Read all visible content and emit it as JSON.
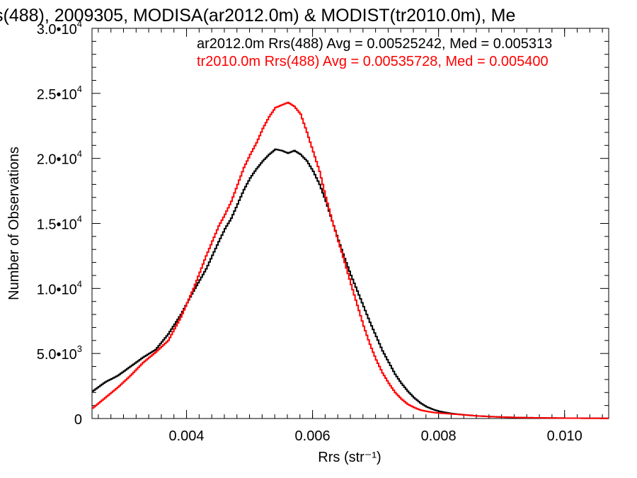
{
  "chart_data": {
    "type": "line",
    "title": "s(488), 2009305, MODISA(ar2012.0m) & MODIST(tr2010.0m), Me",
    "xlabel": "Rrs (str⁻¹)",
    "ylabel": "Number of Observations",
    "xlim": [
      0.0025,
      0.0107
    ],
    "ylim": [
      0,
      30000
    ],
    "x_ticks": [
      {
        "value": 0.004,
        "label": "0.004"
      },
      {
        "value": 0.006,
        "label": "0.006"
      },
      {
        "value": 0.008,
        "label": "0.008"
      },
      {
        "value": 0.01,
        "label": "0.010"
      }
    ],
    "y_ticks": [
      {
        "value": 0,
        "mant": "0",
        "exp": ""
      },
      {
        "value": 5000,
        "mant": "5.0•10",
        "exp": "3"
      },
      {
        "value": 10000,
        "mant": "1.0•10",
        "exp": "4"
      },
      {
        "value": 15000,
        "mant": "1.5•10",
        "exp": "4"
      },
      {
        "value": 20000,
        "mant": "2.0•10",
        "exp": "4"
      },
      {
        "value": 25000,
        "mant": "2.5•10",
        "exp": "4"
      },
      {
        "value": 30000,
        "mant": "3.0•10",
        "exp": "4"
      }
    ],
    "legend_position": "top-right",
    "series": [
      {
        "label": "ar2012.0m Rrs(488) Avg = 0.00525242, Med = 0.005313",
        "color": "#000000",
        "x": [
          0.0025,
          0.0027,
          0.0029,
          0.0031,
          0.0033,
          0.0035,
          0.0037,
          0.0039,
          0.0041,
          0.0043,
          0.0045,
          0.0046,
          0.0047,
          0.0048,
          0.0049,
          0.005,
          0.0051,
          0.0052,
          0.0053,
          0.0054,
          0.0055,
          0.0056,
          0.0057,
          0.0058,
          0.0059,
          0.006,
          0.0061,
          0.0062,
          0.0063,
          0.0064,
          0.0065,
          0.0066,
          0.0067,
          0.0068,
          0.0069,
          0.007,
          0.0071,
          0.0072,
          0.0073,
          0.0074,
          0.0075,
          0.0076,
          0.0077,
          0.0078,
          0.0079,
          0.008,
          0.0082,
          0.0084,
          0.0086,
          0.0088,
          0.009,
          0.0093,
          0.0096,
          0.01,
          0.0104,
          0.0107
        ],
        "y": [
          2100,
          2800,
          3300,
          4000,
          4700,
          5300,
          6500,
          8000,
          9800,
          11500,
          13600,
          14600,
          15400,
          16500,
          17600,
          18500,
          19200,
          19800,
          20300,
          20700,
          20600,
          20400,
          20600,
          20300,
          19800,
          19000,
          18000,
          16700,
          15200,
          13700,
          12300,
          11000,
          9800,
          8600,
          7400,
          6300,
          5200,
          4300,
          3400,
          2700,
          2100,
          1600,
          1200,
          900,
          700,
          550,
          380,
          280,
          200,
          150,
          110,
          70,
          50,
          30,
          20,
          15
        ]
      },
      {
        "label": "tr2010.0m Rrs(488) Avg = 0.00535728, Med = 0.005400",
        "color": "#ff0000",
        "x": [
          0.0025,
          0.0027,
          0.0029,
          0.0031,
          0.0033,
          0.0035,
          0.0037,
          0.0039,
          0.0041,
          0.0043,
          0.0045,
          0.0046,
          0.0047,
          0.0048,
          0.0049,
          0.005,
          0.0051,
          0.0052,
          0.0053,
          0.0054,
          0.0055,
          0.0056,
          0.0057,
          0.0058,
          0.0059,
          0.006,
          0.0061,
          0.0062,
          0.0063,
          0.0064,
          0.0065,
          0.0066,
          0.0067,
          0.0068,
          0.0069,
          0.007,
          0.0071,
          0.0072,
          0.0073,
          0.0074,
          0.0075,
          0.0076,
          0.0077,
          0.0078,
          0.0079,
          0.008,
          0.0082,
          0.0084,
          0.0086,
          0.0088,
          0.009,
          0.0093,
          0.0096,
          0.01,
          0.0104,
          0.0107
        ],
        "y": [
          800,
          1600,
          2400,
          3300,
          4300,
          5100,
          6000,
          7800,
          10000,
          12500,
          14800,
          15700,
          16700,
          18000,
          19300,
          20300,
          21200,
          22300,
          23200,
          23900,
          24100,
          24300,
          24000,
          23400,
          22000,
          20500,
          19000,
          17000,
          15200,
          13600,
          12000,
          10300,
          8700,
          7100,
          5700,
          4500,
          3500,
          2700,
          2000,
          1500,
          1100,
          850,
          650,
          550,
          470,
          420,
          350,
          280,
          200,
          150,
          110,
          70,
          50,
          30,
          20,
          15
        ]
      }
    ]
  }
}
